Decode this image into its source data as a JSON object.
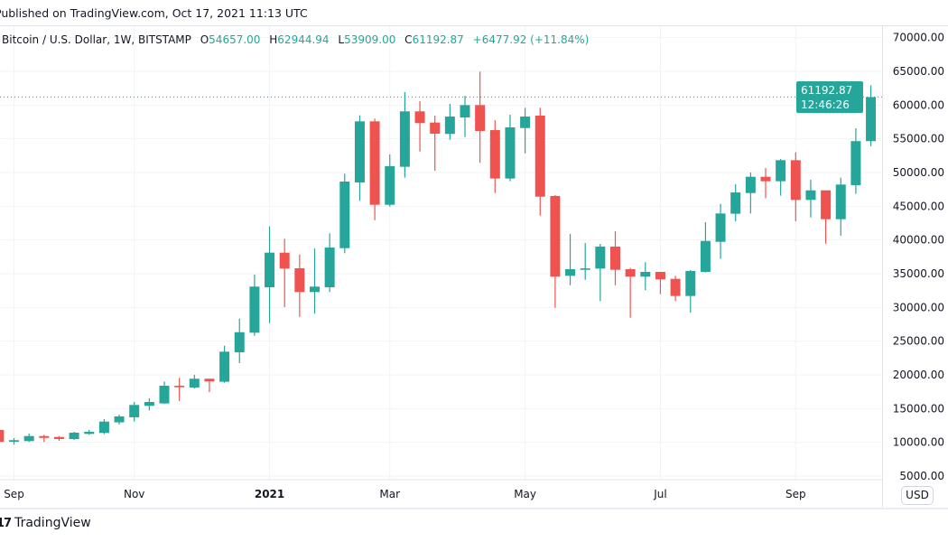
{
  "header": {
    "published": "Published on TradingView.com, Oct 17, 2021 11:13 UTC"
  },
  "legend": {
    "symbol": "Bitcoin / U.S. Dollar, 1W, BITSTAMP",
    "open_label": "O",
    "open": "54657.00",
    "high_label": "H",
    "high": "62944.94",
    "low_label": "L",
    "low": "53909.00",
    "close_label": "C",
    "close": "61192.87",
    "change": "+6477.92 (+11.84%)"
  },
  "price_axis": {
    "currency": "USD",
    "last_price": "61192.87",
    "countdown": "12:46:26"
  },
  "footer": {
    "brand": "TradingView"
  },
  "colors": {
    "up": "#26a69a",
    "down": "#ef5350",
    "grid": "#f0f3fa",
    "text": "#131722"
  },
  "chart_data": {
    "type": "candlestick",
    "x_start": "2020-08-31",
    "x_interval": "1W",
    "ylim": [
      3000,
      72000
    ],
    "scale": "linear",
    "grid": true,
    "y_ticks": [
      "70000.00",
      "65000.00",
      "60000.00",
      "55000.00",
      "50000.00",
      "45000.00",
      "40000.00",
      "35000.00",
      "30000.00",
      "25000.00",
      "20000.00",
      "15000.00",
      "10000.00",
      "5000.00"
    ],
    "x_ticks": [
      {
        "label": "Sep",
        "date": "2020-09-07"
      },
      {
        "label": "Nov",
        "date": "2020-11-02"
      },
      {
        "label": "2021",
        "date": "2021-01-04",
        "bold": true
      },
      {
        "label": "Mar",
        "date": "2021-03-01"
      },
      {
        "label": "May",
        "date": "2021-05-03"
      },
      {
        "label": "Jul",
        "date": "2021-07-05"
      },
      {
        "label": "Sep",
        "date": "2021-09-06"
      }
    ],
    "ohlc": [
      [
        11830,
        12000,
        10000,
        10090
      ],
      [
        10090,
        10620,
        9650,
        10320
      ],
      [
        10180,
        11290,
        10050,
        10930
      ],
      [
        10930,
        11120,
        10050,
        10660
      ],
      [
        10800,
        10930,
        10230,
        10490
      ],
      [
        10490,
        11560,
        10360,
        11430
      ],
      [
        11250,
        11830,
        11120,
        11560
      ],
      [
        11390,
        13440,
        11210,
        13080
      ],
      [
        12960,
        14110,
        12630,
        13840
      ],
      [
        13710,
        15980,
        13080,
        15540
      ],
      [
        15410,
        16520,
        14740,
        15980
      ],
      [
        15770,
        19020,
        15690,
        18390
      ],
      [
        18390,
        19560,
        16120,
        18170
      ],
      [
        18130,
        20000,
        17990,
        19430
      ],
      [
        19430,
        19430,
        17440,
        19020
      ],
      [
        18980,
        24330,
        18840,
        23440
      ],
      [
        23350,
        28340,
        21740,
        26330
      ],
      [
        26250,
        34870,
        25800,
        33090
      ],
      [
        32990,
        42000,
        27670,
        38120
      ],
      [
        38120,
        40180,
        30040,
        35760
      ],
      [
        35800,
        37850,
        28610,
        32280
      ],
      [
        32280,
        38750,
        29070,
        33090
      ],
      [
        32990,
        40990,
        32280,
        38880
      ],
      [
        38790,
        49830,
        38040,
        48660
      ],
      [
        48530,
        58480,
        45810,
        57590
      ],
      [
        57590,
        58000,
        42940,
        45220
      ],
      [
        45220,
        52680,
        44950,
        50940
      ],
      [
        50850,
        61920,
        49240,
        59070
      ],
      [
        59070,
        60580,
        53120,
        57330
      ],
      [
        57410,
        58440,
        50270,
        55760
      ],
      [
        55720,
        60180,
        54860,
        58300
      ],
      [
        58170,
        61380,
        55260,
        60000
      ],
      [
        60000,
        64960,
        51430,
        56160
      ],
      [
        56290,
        57770,
        46960,
        49110
      ],
      [
        49110,
        58570,
        48710,
        56700
      ],
      [
        56600,
        59600,
        52850,
        58300
      ],
      [
        58440,
        59600,
        43610,
        46420
      ],
      [
        46520,
        46650,
        29950,
        34560
      ],
      [
        34690,
        40890,
        33300,
        35670
      ],
      [
        35580,
        39550,
        34100,
        35800
      ],
      [
        35760,
        39420,
        30940,
        39020
      ],
      [
        39020,
        41290,
        33300,
        35580
      ],
      [
        35670,
        35850,
        28480,
        34560
      ],
      [
        34560,
        36700,
        32550,
        35270
      ],
      [
        35270,
        35270,
        31960,
        34160
      ],
      [
        34240,
        34690,
        30940,
        31700
      ],
      [
        31700,
        35540,
        29240,
        35400
      ],
      [
        35270,
        42630,
        35180,
        39860
      ],
      [
        39730,
        45350,
        37190,
        43930
      ],
      [
        43890,
        48260,
        42770,
        47050
      ],
      [
        46960,
        50000,
        43930,
        49370
      ],
      [
        49370,
        50670,
        46210,
        48710
      ],
      [
        48710,
        52010,
        46570,
        51830
      ],
      [
        51830,
        52990,
        42770,
        45940
      ],
      [
        45940,
        48930,
        43340,
        47360
      ],
      [
        47360,
        47360,
        39460,
        43080
      ],
      [
        43080,
        49240,
        40630,
        48220
      ],
      [
        48130,
        56560,
        46840,
        54657
      ],
      [
        54657,
        62944.94,
        53909,
        61192.87
      ]
    ]
  }
}
